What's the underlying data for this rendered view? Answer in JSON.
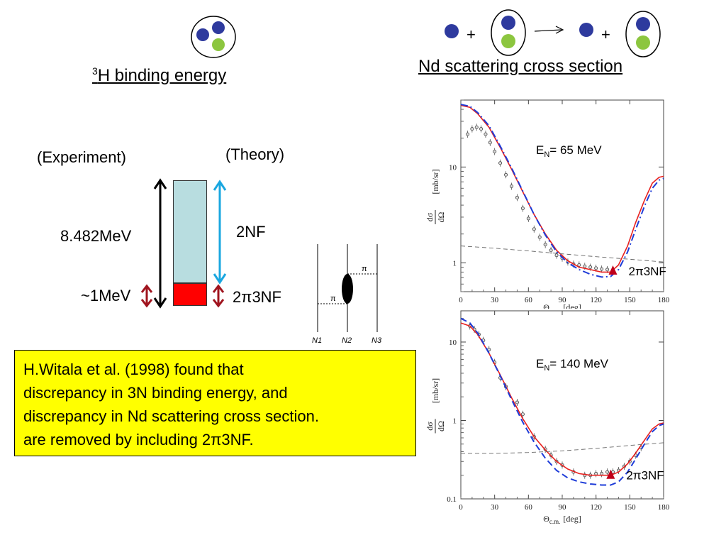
{
  "colors": {
    "proton_blue": "#2e3a9e",
    "neutron_green": "#8cc63f",
    "theory_2nf": "#b8dde0",
    "theory_3nf": "#ff0000",
    "arrow_cyan": "#1aa7e0",
    "arrow_darkred": "#a0141e",
    "highlight": "#ffff00",
    "curve_red": "#e8201e",
    "curve_blue": "#1e3cd8",
    "marker_red": "#c0001a"
  },
  "binding": {
    "title_sup": "3",
    "title_main": "H binding energy",
    "experiment_label": "(Experiment)",
    "theory_label": "(Theory)",
    "energy_label": "8.482MeV",
    "nf2_label": "2NF",
    "approx_label": "~1MeV",
    "nf3_prefix": "2",
    "nf3_pi": "π",
    "nf3_suffix": "3NF"
  },
  "feynman": {
    "pi_upper": "π",
    "pi_lower": "π",
    "n1": "N1",
    "n2": "N2",
    "n3": "N3"
  },
  "scattering": {
    "title": "Nd scattering cross section",
    "plus1": "+",
    "plus2": "+"
  },
  "caption": {
    "line1": "H.Witala et al. (1998)  found that",
    "line2": "discrepancy in 3N binding energy, and",
    "line3": "discrepancy in Nd scattering cross section.",
    "line4_prefix": "are removed by including 2",
    "line4_pi": "π",
    "line4_suffix": "3NF."
  },
  "chart_data": [
    {
      "type": "line",
      "annotation_prefix": "E",
      "annotation_sub": "N",
      "annotation_value": "= 65 MeV",
      "marker_label_prefix": "2",
      "marker_label_pi": "π",
      "marker_label_suffix": "3NF",
      "marker_x": 135,
      "marker_y": 0.82,
      "xlabel_main": "Θ",
      "xlabel_sub": "c.m.",
      "xlabel_unit": "[deg]",
      "ylabel_num": "dσ",
      "ylabel_den": "dΩ",
      "ylabel_unit": "[mb/sr]",
      "xlim": [
        0,
        180
      ],
      "ylim": [
        0.5,
        50
      ],
      "log_y": true,
      "xticks": [
        "0",
        "30",
        "60",
        "90",
        "120",
        "150",
        "180"
      ],
      "yticks": [
        {
          "v": 1,
          "label": "1"
        },
        {
          "v": 10,
          "label": "10"
        }
      ],
      "series": [
        {
          "style": "solid",
          "color": "#e8201e",
          "x": [
            0,
            8,
            15,
            25,
            35,
            45,
            55,
            65,
            75,
            85,
            95,
            105,
            115,
            125,
            133,
            140,
            148,
            155,
            163,
            170,
            176,
            180
          ],
          "y": [
            44,
            42,
            36,
            26,
            16,
            9.5,
            5.5,
            3.2,
            2.0,
            1.35,
            1.05,
            0.9,
            0.85,
            0.8,
            0.8,
            0.95,
            1.5,
            2.6,
            4.5,
            6.8,
            7.8,
            8.0
          ]
        },
        {
          "style": "dashdot",
          "color": "#1e3cd8",
          "x": [
            0,
            8,
            15,
            25,
            35,
            45,
            55,
            65,
            75,
            85,
            95,
            105,
            115,
            125,
            133,
            140,
            148,
            155,
            163,
            170,
            176,
            180
          ],
          "y": [
            45,
            43,
            37,
            27,
            16.5,
            9.8,
            5.6,
            3.2,
            1.95,
            1.3,
            1.0,
            0.85,
            0.76,
            0.71,
            0.72,
            0.85,
            1.3,
            2.2,
            3.9,
            6.0,
            7.3,
            7.6
          ]
        },
        {
          "style": "dashed",
          "color": "#666666",
          "x": [
            0,
            30,
            60,
            90,
            120,
            150,
            180
          ],
          "y": [
            1.5,
            1.42,
            1.33,
            1.24,
            1.16,
            1.09,
            1.02
          ]
        }
      ],
      "points": {
        "x": [
          6,
          10,
          14,
          18,
          22,
          26,
          30,
          35,
          40,
          45,
          50,
          55,
          60,
          65,
          70,
          75,
          80,
          85,
          90,
          95,
          100,
          105,
          110,
          115,
          120,
          125,
          130
        ],
        "y": [
          22,
          25,
          26,
          25,
          22,
          18,
          14.5,
          11,
          8.3,
          6.3,
          4.8,
          3.7,
          2.9,
          2.25,
          1.85,
          1.55,
          1.35,
          1.2,
          1.12,
          1.02,
          0.97,
          0.95,
          0.92,
          0.9,
          0.88,
          0.86,
          0.85
        ]
      }
    },
    {
      "type": "line",
      "annotation_prefix": "E",
      "annotation_sub": "N",
      "annotation_value": "= 140 MeV",
      "marker_label_prefix": "2",
      "marker_label_pi": "π",
      "marker_label_suffix": "3NF",
      "marker_x": 133,
      "marker_y": 0.2,
      "xlabel_main": "Θ",
      "xlabel_sub": "c.m.",
      "xlabel_unit": "[deg]",
      "ylabel_num": "dσ",
      "ylabel_den": "dΩ",
      "ylabel_unit": "[mb/sr]",
      "xlim": [
        0,
        180
      ],
      "ylim": [
        0.1,
        25
      ],
      "log_y": true,
      "xticks": [
        "0",
        "30",
        "60",
        "90",
        "120",
        "150",
        "180"
      ],
      "yticks": [
        {
          "v": 0.1,
          "label": "0.1"
        },
        {
          "v": 1,
          "label": "1"
        },
        {
          "v": 10,
          "label": "10"
        }
      ],
      "series": [
        {
          "style": "solid",
          "color": "#e8201e",
          "x": [
            0,
            8,
            15,
            25,
            35,
            45,
            55,
            65,
            75,
            85,
            95,
            105,
            115,
            125,
            133,
            140,
            148,
            155,
            163,
            170,
            176,
            180
          ],
          "y": [
            17.5,
            16,
            12.5,
            7.2,
            3.8,
            1.95,
            1.05,
            0.62,
            0.42,
            0.3,
            0.24,
            0.21,
            0.2,
            0.2,
            0.2,
            0.22,
            0.28,
            0.38,
            0.56,
            0.78,
            0.9,
            0.93
          ]
        },
        {
          "style": "dashed",
          "color": "#1e3cd8",
          "x": [
            0,
            8,
            15,
            25,
            35,
            45,
            55,
            65,
            75,
            85,
            95,
            105,
            115,
            125,
            133,
            140,
            148,
            155,
            163,
            170,
            176,
            180
          ],
          "y": [
            20,
            17.5,
            13,
            7.2,
            3.7,
            1.85,
            0.95,
            0.53,
            0.33,
            0.23,
            0.185,
            0.165,
            0.155,
            0.15,
            0.15,
            0.165,
            0.22,
            0.32,
            0.5,
            0.72,
            0.86,
            0.9
          ]
        },
        {
          "style": "dashed",
          "color": "#666666",
          "x": [
            0,
            30,
            60,
            90,
            120,
            150,
            180
          ],
          "y": [
            0.38,
            0.38,
            0.39,
            0.41,
            0.44,
            0.48,
            0.52
          ]
        }
      ],
      "points": {
        "x": [
          8,
          12,
          16,
          20,
          25,
          30,
          35,
          40,
          50,
          55,
          65,
          75,
          80,
          85,
          90,
          100,
          110,
          115,
          120,
          125,
          130,
          135,
          140,
          145,
          150,
          155,
          160
        ],
        "y": [
          16,
          14.5,
          12.5,
          10.5,
          8,
          5.5,
          3.5,
          2.7,
          1.7,
          1.2,
          0.62,
          0.43,
          0.36,
          0.3,
          0.27,
          0.22,
          0.2,
          0.2,
          0.21,
          0.21,
          0.22,
          0.22,
          0.23,
          0.26,
          0.3,
          0.36,
          0.45
        ]
      }
    }
  ]
}
